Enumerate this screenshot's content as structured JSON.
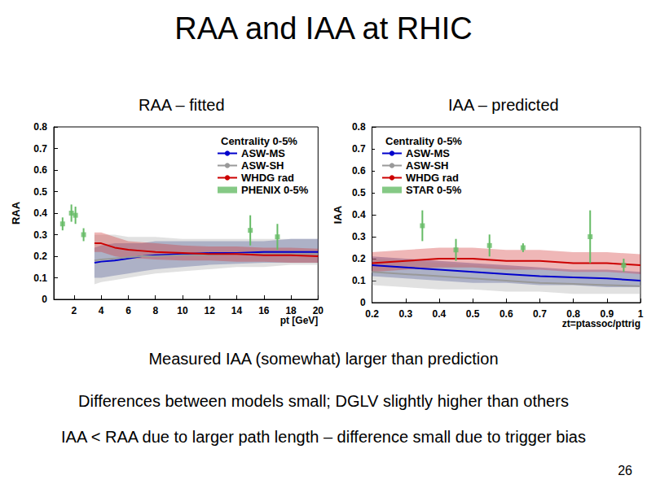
{
  "title": "RAA and IAA at RHIC",
  "notes": [
    "Measured IAA (somewhat) larger than prediction",
    "Differences between models small; DGLV slightly higher than others",
    "IAA < RAA due to larger path length – difference small due to trigger bias"
  ],
  "page_number": "26",
  "chart_data": [
    {
      "type": "line",
      "title": "RAA – fitted",
      "x_label": "pt [GeV]",
      "y_label": "RAA",
      "legend_title": "Centrality 0-5%",
      "legend": "upper right",
      "grid": false,
      "xlim": [
        0.5,
        20
      ],
      "xticks": [
        2,
        4,
        6,
        8,
        10,
        12,
        14,
        16,
        18,
        20
      ],
      "ylim": [
        0,
        0.8
      ],
      "yticks": [
        0,
        0.1,
        0.2,
        0.3,
        0.4,
        0.5,
        0.6,
        0.7,
        0.8
      ],
      "series": [
        {
          "name": "ASW-MS",
          "type": "line",
          "line_style": "solid",
          "color": "#0000cc",
          "band_color": "#1a2a8a",
          "x": [
            3.5,
            4,
            5,
            6,
            7,
            8,
            10,
            12,
            14,
            16,
            18,
            20
          ],
          "values": [
            0.17,
            0.175,
            0.18,
            0.19,
            0.2,
            0.205,
            0.21,
            0.215,
            0.215,
            0.22,
            0.22,
            0.22
          ],
          "lower": [
            0.1,
            0.1,
            0.11,
            0.12,
            0.13,
            0.14,
            0.15,
            0.16,
            0.165,
            0.17,
            0.17,
            0.17
          ],
          "upper": [
            0.24,
            0.25,
            0.26,
            0.26,
            0.26,
            0.27,
            0.27,
            0.27,
            0.27,
            0.27,
            0.28,
            0.28
          ]
        },
        {
          "name": "ASW-SH",
          "type": "line",
          "line_style": "solid",
          "color": "#999999",
          "band_color": "#aaaaaa",
          "x": [
            3.5,
            4,
            5,
            6,
            7,
            8,
            10,
            12,
            14,
            16,
            18,
            20
          ],
          "values": [
            0.18,
            0.185,
            0.19,
            0.195,
            0.2,
            0.2,
            0.205,
            0.205,
            0.21,
            0.21,
            0.21,
            0.21
          ],
          "lower": [
            0.07,
            0.08,
            0.09,
            0.1,
            0.11,
            0.12,
            0.13,
            0.14,
            0.15,
            0.15,
            0.16,
            0.16
          ],
          "upper": [
            0.3,
            0.3,
            0.3,
            0.29,
            0.29,
            0.29,
            0.28,
            0.28,
            0.28,
            0.28,
            0.28,
            0.28
          ]
        },
        {
          "name": "WHDG rad",
          "type": "line",
          "line_style": "solid",
          "color": "#cc0000",
          "band_color": "#d03030",
          "x": [
            3.5,
            4,
            5,
            6,
            7,
            8,
            10,
            12,
            14,
            16,
            18,
            20
          ],
          "values": [
            0.26,
            0.26,
            0.24,
            0.23,
            0.225,
            0.22,
            0.215,
            0.21,
            0.21,
            0.205,
            0.205,
            0.2
          ],
          "lower": [
            0.22,
            0.22,
            0.2,
            0.19,
            0.19,
            0.185,
            0.18,
            0.18,
            0.175,
            0.175,
            0.17,
            0.17
          ],
          "upper": [
            0.31,
            0.31,
            0.29,
            0.27,
            0.265,
            0.26,
            0.25,
            0.245,
            0.245,
            0.24,
            0.24,
            0.235
          ]
        },
        {
          "name": "PHENIX 0-5%",
          "type": "scatter",
          "marker": "square",
          "color": "#66bb66",
          "x": [
            1.15,
            1.8,
            2.1,
            2.7,
            15,
            17
          ],
          "values": [
            0.35,
            0.4,
            0.39,
            0.3,
            0.32,
            0.29
          ],
          "error": [
            0.03,
            0.04,
            0.04,
            0.03,
            0.07,
            0.06
          ]
        }
      ]
    },
    {
      "type": "line",
      "title": "IAA – predicted",
      "x_label": "zt=ptassoc/pttrig",
      "y_label": "IAA",
      "legend_title": "Centrality 0-5%",
      "legend": "upper right",
      "grid": false,
      "xlim": [
        0.2,
        1
      ],
      "xticks": [
        0.2,
        0.3,
        0.4,
        0.5,
        0.6,
        0.7,
        0.8,
        0.9,
        1
      ],
      "ylim": [
        0,
        0.8
      ],
      "yticks": [
        0,
        0.1,
        0.2,
        0.3,
        0.4,
        0.5,
        0.6,
        0.7,
        0.8
      ],
      "series": [
        {
          "name": "ASW-MS",
          "type": "line",
          "line_style": "solid",
          "color": "#0000cc",
          "band_color": "#1a2a8a",
          "x": [
            0.2,
            0.3,
            0.4,
            0.5,
            0.6,
            0.7,
            0.8,
            0.9,
            1
          ],
          "values": [
            0.17,
            0.16,
            0.15,
            0.14,
            0.13,
            0.12,
            0.115,
            0.11,
            0.1
          ],
          "lower": [
            0.12,
            0.11,
            0.1,
            0.09,
            0.09,
            0.08,
            0.08,
            0.07,
            0.07
          ],
          "upper": [
            0.21,
            0.2,
            0.19,
            0.18,
            0.17,
            0.16,
            0.15,
            0.15,
            0.14
          ]
        },
        {
          "name": "ASW-SH",
          "type": "line",
          "line_style": "solid",
          "color": "#999999",
          "band_color": "#aaaaaa",
          "x": [
            0.2,
            0.3,
            0.4,
            0.5,
            0.6,
            0.7,
            0.8,
            0.9,
            1
          ],
          "values": [
            0.14,
            0.13,
            0.12,
            0.11,
            0.1,
            0.09,
            0.085,
            0.08,
            0.075
          ],
          "lower": [
            0.08,
            0.07,
            0.06,
            0.06,
            0.05,
            0.05,
            0.04,
            0.04,
            0.04
          ],
          "upper": [
            0.2,
            0.19,
            0.18,
            0.17,
            0.16,
            0.15,
            0.14,
            0.14,
            0.13
          ]
        },
        {
          "name": "WHDG rad",
          "type": "line",
          "line_style": "solid",
          "color": "#cc0000",
          "band_color": "#d03030",
          "x": [
            0.2,
            0.3,
            0.4,
            0.5,
            0.6,
            0.7,
            0.8,
            0.9,
            1
          ],
          "values": [
            0.18,
            0.19,
            0.2,
            0.2,
            0.19,
            0.19,
            0.18,
            0.18,
            0.17
          ],
          "lower": [
            0.14,
            0.15,
            0.16,
            0.16,
            0.15,
            0.15,
            0.14,
            0.14,
            0.13
          ],
          "upper": [
            0.23,
            0.24,
            0.25,
            0.25,
            0.24,
            0.24,
            0.23,
            0.23,
            0.22
          ]
        },
        {
          "name": "STAR 0-5%",
          "type": "scatter",
          "marker": "square",
          "color": "#66bb66",
          "x": [
            0.35,
            0.45,
            0.55,
            0.65,
            0.85,
            0.95
          ],
          "values": [
            0.35,
            0.24,
            0.26,
            0.25,
            0.3,
            0.17
          ],
          "error": [
            0.07,
            0.05,
            0.05,
            0.02,
            0.12,
            0.03
          ]
        }
      ]
    }
  ]
}
